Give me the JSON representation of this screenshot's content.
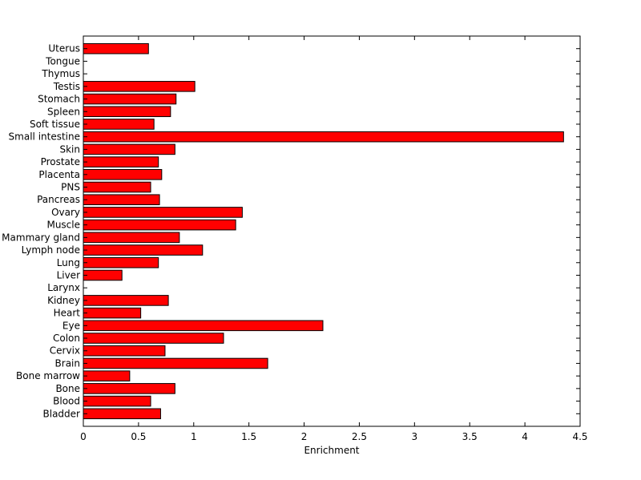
{
  "chart_data": {
    "type": "bar",
    "orientation": "horizontal",
    "title": "",
    "xlabel": "Enrichment",
    "ylabel": "",
    "xlim": [
      0,
      4.5
    ],
    "xticks": [
      0,
      0.5,
      1,
      1.5,
      2,
      2.5,
      3,
      3.5,
      4,
      4.5
    ],
    "xtick_labels": [
      "0",
      "0.5",
      "1",
      "1.5",
      "2",
      "2.5",
      "3",
      "3.5",
      "4",
      "4.5"
    ],
    "grid": false,
    "legend": "none",
    "bar_color": "#ff0000",
    "bar_edge_color": "#000000",
    "categories": [
      "Bladder",
      "Blood",
      "Bone",
      "Bone marrow",
      "Brain",
      "Cervix",
      "Colon",
      "Eye",
      "Heart",
      "Kidney",
      "Larynx",
      "Liver",
      "Lung",
      "Lymph node",
      "Mammary gland",
      "Muscle",
      "Ovary",
      "Pancreas",
      "PNS",
      "Placenta",
      "Prostate",
      "Skin",
      "Small intestine",
      "Soft tissue",
      "Spleen",
      "Stomach",
      "Testis",
      "Thymus",
      "Tongue",
      "Uterus"
    ],
    "values": [
      0.7,
      0.61,
      0.83,
      0.42,
      1.67,
      0.74,
      1.27,
      2.17,
      0.52,
      0.77,
      0,
      0.35,
      0.68,
      1.08,
      0.87,
      1.38,
      1.44,
      0.69,
      0.61,
      0.71,
      0.68,
      0.83,
      4.35,
      0.64,
      0.79,
      0.84,
      1.01,
      0,
      0,
      0.59
    ]
  }
}
